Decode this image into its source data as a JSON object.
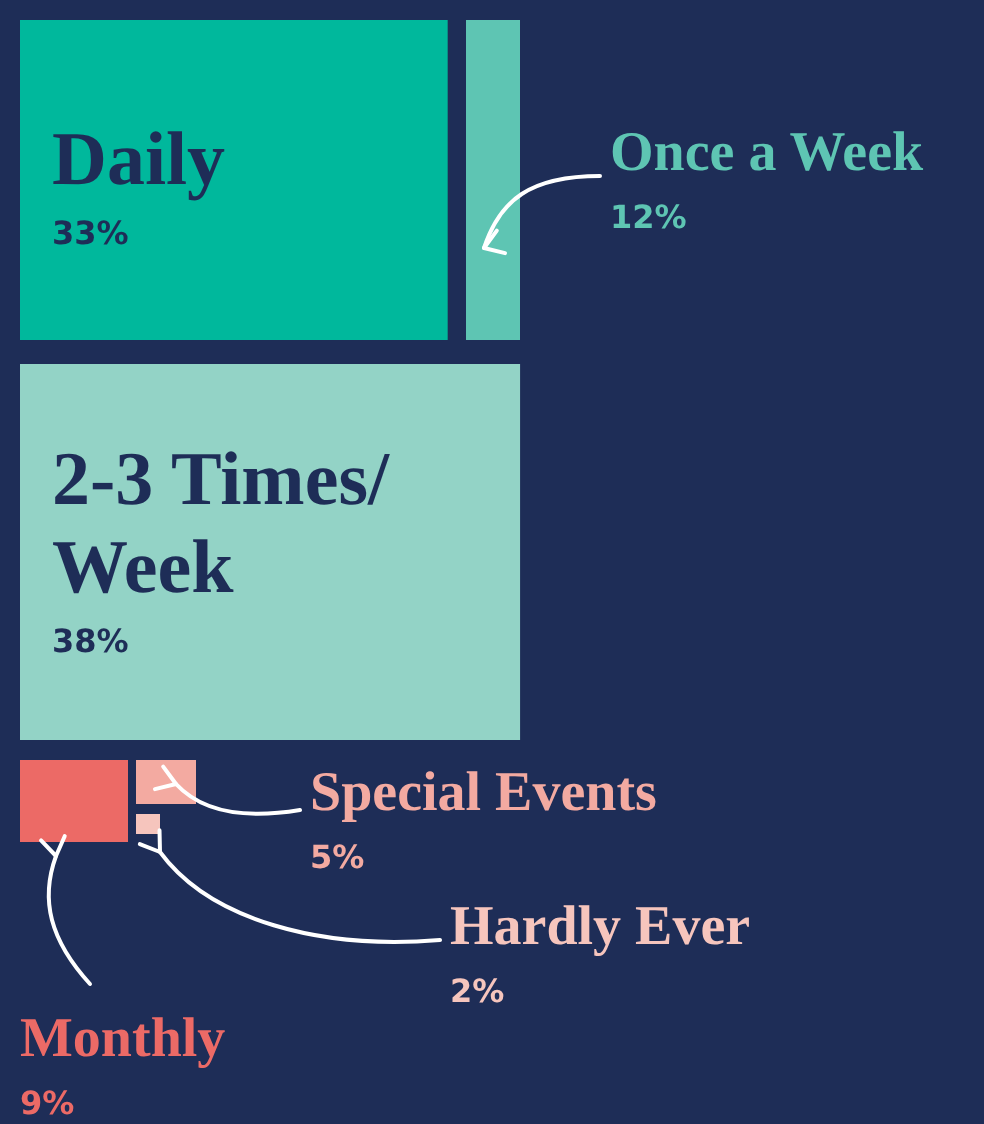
{
  "chart_data": {
    "type": "other",
    "categories": [
      "Daily",
      "Once a Week",
      "2-3 Times/Week",
      "Special Events",
      "Hardly Ever",
      "Monthly"
    ],
    "values": [
      33,
      12,
      38,
      5,
      2,
      9
    ],
    "value_labels": [
      "33%",
      "12%",
      "38%",
      "5%",
      "2%",
      "9%"
    ],
    "colors": [
      "#00b89c",
      "#5ec5b3",
      "#93d3c6",
      "#f3aaa1",
      "#f6c5bd",
      "#ec6a66"
    ]
  }
}
